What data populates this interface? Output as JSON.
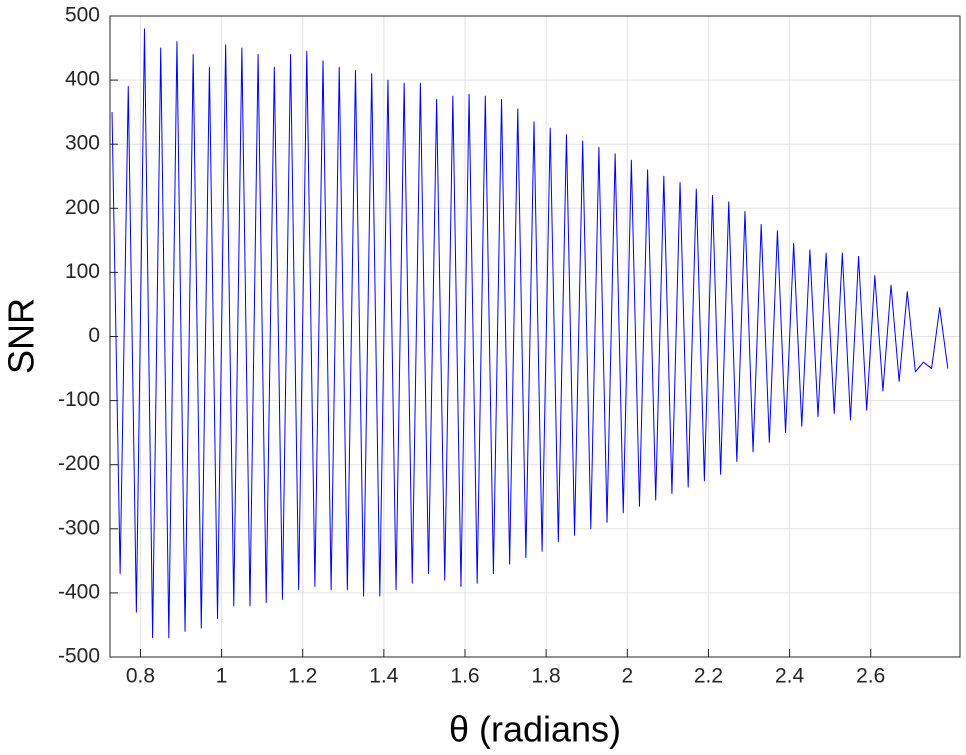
{
  "chart_data": {
    "type": "line",
    "xlabel": "θ (radians)",
    "ylabel": "SNR",
    "xlim": [
      0.725,
      2.82
    ],
    "ylim": [
      -500,
      500
    ],
    "xticks": [
      0.8,
      1,
      1.2,
      1.4,
      1.6,
      1.8,
      2,
      2.2,
      2.4,
      2.6
    ],
    "yticks": [
      -500,
      -400,
      -300,
      -200,
      -100,
      0,
      100,
      200,
      300,
      400,
      500
    ],
    "grid": true,
    "x": [
      0.73,
      0.75,
      0.77,
      0.79,
      0.81,
      0.83,
      0.85,
      0.87,
      0.89,
      0.91,
      0.93,
      0.95,
      0.97,
      0.99,
      1.01,
      1.03,
      1.05,
      1.07,
      1.09,
      1.11,
      1.13,
      1.15,
      1.17,
      1.19,
      1.21,
      1.23,
      1.25,
      1.27,
      1.29,
      1.31,
      1.33,
      1.35,
      1.37,
      1.39,
      1.41,
      1.43,
      1.45,
      1.47,
      1.49,
      1.51,
      1.53,
      1.55,
      1.57,
      1.59,
      1.61,
      1.63,
      1.65,
      1.67,
      1.69,
      1.71,
      1.73,
      1.75,
      1.77,
      1.79,
      1.81,
      1.83,
      1.85,
      1.87,
      1.89,
      1.91,
      1.93,
      1.95,
      1.97,
      1.99,
      2.01,
      2.03,
      2.05,
      2.07,
      2.09,
      2.11,
      2.13,
      2.15,
      2.17,
      2.19,
      2.21,
      2.23,
      2.25,
      2.27,
      2.29,
      2.31,
      2.33,
      2.35,
      2.37,
      2.39,
      2.41,
      2.43,
      2.45,
      2.47,
      2.49,
      2.51,
      2.53,
      2.55,
      2.57,
      2.59,
      2.61,
      2.63,
      2.65,
      2.67,
      2.69,
      2.71,
      2.73,
      2.75,
      2.77,
      2.79
    ],
    "series": [
      {
        "color": "#0000ff",
        "values": [
          350,
          -370,
          390,
          -430,
          480,
          -470,
          450,
          -470,
          460,
          -460,
          440,
          -455,
          420,
          -440,
          455,
          -420,
          450,
          -420,
          440,
          -415,
          420,
          -410,
          440,
          -395,
          445,
          -390,
          430,
          -395,
          420,
          -395,
          415,
          -405,
          410,
          -405,
          400,
          -395,
          395,
          -385,
          395,
          -370,
          370,
          -380,
          375,
          -390,
          378,
          -385,
          375,
          -370,
          370,
          -355,
          355,
          -345,
          335,
          -335,
          325,
          -320,
          315,
          -310,
          305,
          -300,
          295,
          -290,
          285,
          -275,
          275,
          -265,
          260,
          -255,
          250,
          -245,
          240,
          -235,
          230,
          -225,
          220,
          -215,
          210,
          -195,
          195,
          -180,
          175,
          -165,
          165,
          -150,
          145,
          -140,
          135,
          -125,
          130,
          -120,
          130,
          -130,
          125,
          -115,
          95,
          -85,
          80,
          -70,
          70,
          -55,
          -40,
          -50,
          45,
          -50
        ]
      }
    ]
  }
}
